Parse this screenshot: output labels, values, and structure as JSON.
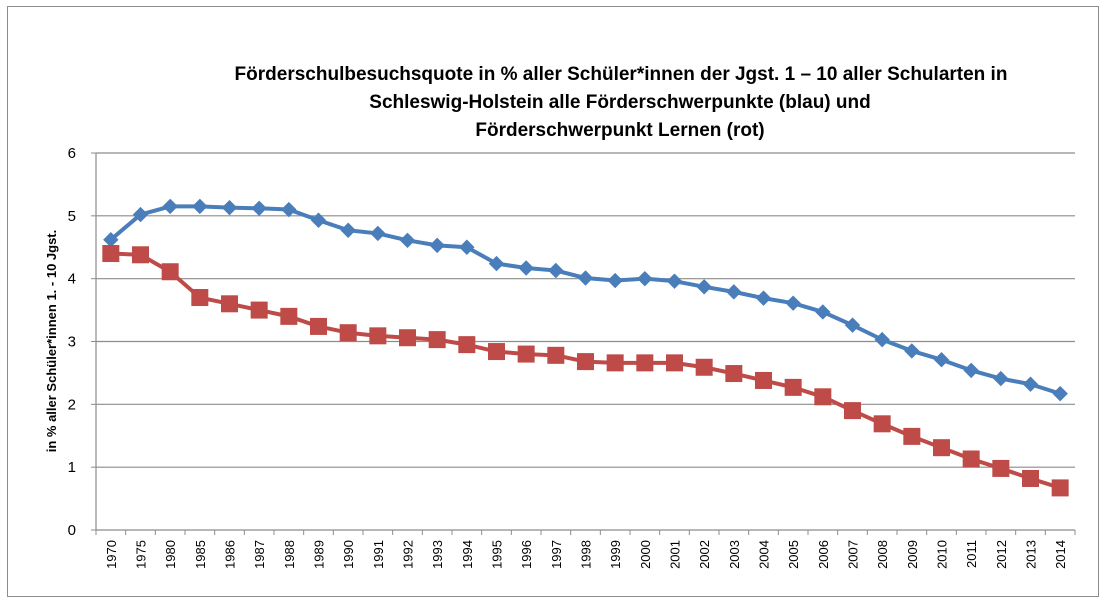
{
  "chart_data": {
    "type": "line",
    "title": [
      "Förderschulbesuchsquote  in % aller Schüler*innen der Jgst. 1 – 10 aller Schularten  in",
      "Schleswig-Holstein  alle Förderschwerpunkte (blau) und",
      "Förderschwerpunkt Lernen (rot)"
    ],
    "xlabel": "",
    "ylabel": "in % aller  Schüler*innen 1. - 10 Jgst.",
    "ylim": [
      0,
      6
    ],
    "yticks": [
      "0",
      "1",
      "2",
      "3",
      "4",
      "5",
      "6"
    ],
    "grid": true,
    "legend": "none",
    "categories": [
      "1970",
      "1975",
      "1980",
      "1985",
      "1986",
      "1987",
      "1988",
      "1989",
      "1990",
      "1991",
      "1992",
      "1993",
      "1994",
      "1995",
      "1996",
      "1997",
      "1998",
      "1999",
      "2000",
      "2001",
      "2002",
      "2003",
      "2004",
      "2005",
      "2006",
      "2007",
      "2008",
      "2009",
      "2010",
      "2011",
      "2012",
      "2013",
      "2014"
    ],
    "series": [
      {
        "marker": "diamond",
        "color": "#4a7ebb",
        "values": [
          4.62,
          5.02,
          5.15,
          5.15,
          5.13,
          5.12,
          5.1,
          4.93,
          4.77,
          4.72,
          4.61,
          4.53,
          4.5,
          4.24,
          4.17,
          4.13,
          4.01,
          3.97,
          4.0,
          3.96,
          3.87,
          3.79,
          3.69,
          3.61,
          3.47,
          3.26,
          3.03,
          2.85,
          2.71,
          2.54,
          2.41,
          2.32,
          2.17
        ]
      },
      {
        "marker": "square",
        "color": "#be4b48",
        "values": [
          4.4,
          4.38,
          4.11,
          3.7,
          3.6,
          3.5,
          3.4,
          3.24,
          3.14,
          3.09,
          3.06,
          3.03,
          2.95,
          2.84,
          2.8,
          2.78,
          2.68,
          2.66,
          2.66,
          2.66,
          2.59,
          2.49,
          2.38,
          2.27,
          2.12,
          1.9,
          1.69,
          1.49,
          1.31,
          1.13,
          0.98,
          0.82,
          0.67
        ]
      }
    ]
  }
}
